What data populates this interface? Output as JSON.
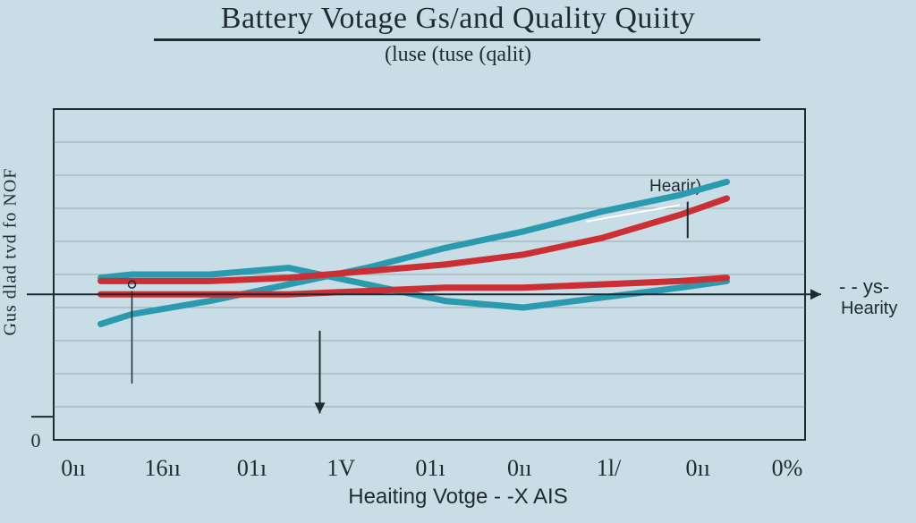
{
  "chart_data": {
    "type": "line",
    "title": "Battery Votage Gs/and Quality Quiity",
    "subtitle": "(luse (tuse (qalit)",
    "xlabel": "Heaiting Votge - -X AIS",
    "ylabel": "Gus dlad tvd fo NOF",
    "ylim": [
      0,
      10
    ],
    "x_ticks": [
      "0ıı",
      "16ıı",
      "01ı",
      "1V",
      "01ı",
      "0ıı",
      "1l/",
      "0ıı",
      "0%"
    ],
    "y_ticks": [
      "0",
      "",
      "",
      "",
      "",
      "",
      "",
      "",
      "",
      "",
      ""
    ],
    "grid": true,
    "annotations": [
      "Hearir)"
    ],
    "legend": [
      "- - ys-",
      "Hearity"
    ],
    "legend_position": "right",
    "colors": {
      "teal": "#2a9aae",
      "red": "#cc2f33",
      "axis": "#1f2a32"
    },
    "series": [
      {
        "color": "#2a9aae",
        "x": [
          0.6,
          1,
          2,
          3,
          4,
          5,
          6,
          7,
          8,
          8.6
        ],
        "y": [
          3.5,
          3.8,
          4.2,
          4.7,
          5.2,
          5.8,
          6.3,
          6.9,
          7.4,
          7.8
        ]
      },
      {
        "color": "#2a9aae",
        "x": [
          0.6,
          1,
          2,
          3,
          4,
          5,
          6,
          7,
          8,
          8.6
        ],
        "y": [
          4.9,
          5.0,
          5.0,
          5.2,
          4.7,
          4.2,
          4.0,
          4.3,
          4.6,
          4.8
        ]
      },
      {
        "color": "#cc2f33",
        "x": [
          0.6,
          1,
          2,
          3,
          4,
          5,
          6,
          7,
          8,
          8.6
        ],
        "y": [
          4.8,
          4.8,
          4.8,
          4.9,
          5.1,
          5.3,
          5.6,
          6.1,
          6.8,
          7.3
        ]
      },
      {
        "color": "#cc2f33",
        "x": [
          0.6,
          1,
          2,
          3,
          4,
          5,
          6,
          7,
          8,
          8.6
        ],
        "y": [
          4.4,
          4.4,
          4.4,
          4.4,
          4.5,
          4.6,
          4.6,
          4.7,
          4.8,
          4.9
        ]
      }
    ]
  }
}
